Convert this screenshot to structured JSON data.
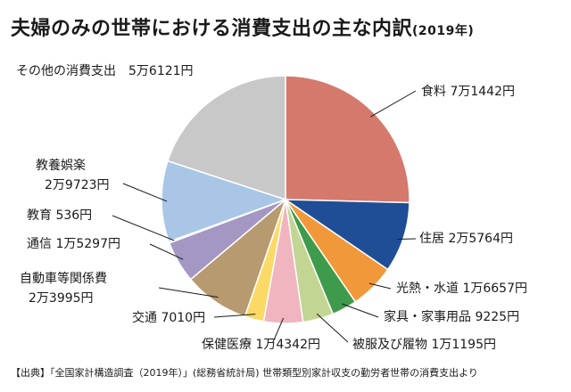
{
  "title": "夫婦のみの世帯における消費支出の主な内訳",
  "title_suffix": "(2019年)",
  "source": "【出典】「全国家計構造調査（2019年）」(総務省統計局) 世帯類型別家計収支の勤労者世帯の消費支出より",
  "chart_data": {
    "type": "pie",
    "title": "夫婦のみの世帯における消費支出の主な内訳(2019年)",
    "unit": "円",
    "start_angle_deg": 0,
    "direction": "clockwise",
    "slices": [
      {
        "name": "食料",
        "value": 71442,
        "label": [
          "食料 7万1442円"
        ],
        "color": "#d4796c"
      },
      {
        "name": "住居",
        "value": 25764,
        "label": [
          "住居 2万5764円"
        ],
        "color": "#1f4e96"
      },
      {
        "name": "光熱・水道",
        "value": 16657,
        "label": [
          "光熱・水道 1万6657円"
        ],
        "color": "#f1993a"
      },
      {
        "name": "家具・家事用品",
        "value": 9225,
        "label": [
          "家具・家事用品 9225円"
        ],
        "color": "#3f9b4c"
      },
      {
        "name": "被服及び履物",
        "value": 11195,
        "label": [
          "被服及び履物 1万1195円"
        ],
        "color": "#c3d592"
      },
      {
        "name": "保健医療",
        "value": 14342,
        "label": [
          "保健医療 1万4342円"
        ],
        "color": "#f1b5bf"
      },
      {
        "name": "交通",
        "value": 7010,
        "label": [
          "交通 7010円"
        ],
        "color": "#fad966"
      },
      {
        "name": "自動車等関係費",
        "value": 23995,
        "label": [
          "自動車等関係費",
          "2万3995円"
        ],
        "color": "#b79a70"
      },
      {
        "name": "通信",
        "value": 15297,
        "label": [
          "通信 1万5297円"
        ],
        "color": "#a597c4"
      },
      {
        "name": "教育",
        "value": 536,
        "label": [
          "教育 536円"
        ],
        "color": "#6f8fbf"
      },
      {
        "name": "教養娯楽",
        "value": 29723,
        "label": [
          "教養娯楽",
          "2万9723円"
        ],
        "color": "#a9c6e6"
      },
      {
        "name": "その他の消費支出",
        "value": 56121,
        "label": [
          "その他の消費支出　5万6121円"
        ],
        "color": "#c8c8c8"
      }
    ]
  }
}
